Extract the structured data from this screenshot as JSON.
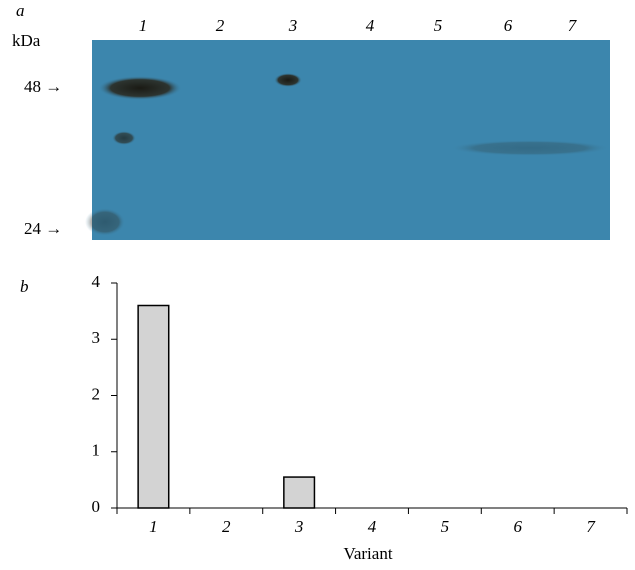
{
  "panel_a": {
    "label": "a",
    "unit": "kDa",
    "lanes": [
      "1",
      "2",
      "3",
      "4",
      "5",
      "6",
      "7"
    ],
    "markers": [
      "48 →",
      "24 →"
    ]
  },
  "chart_data": {
    "type": "bar",
    "panel_label": "b",
    "x_label": "Variant",
    "categories": [
      "1",
      "2",
      "3",
      "4",
      "5",
      "6",
      "7"
    ],
    "values": [
      3.6,
      0,
      0.55,
      0,
      0,
      0,
      0
    ],
    "color": "#d3d3d3",
    "ylim": [
      0,
      4
    ],
    "yticks": [
      0,
      1,
      2,
      3,
      4
    ],
    "grid": false
  }
}
